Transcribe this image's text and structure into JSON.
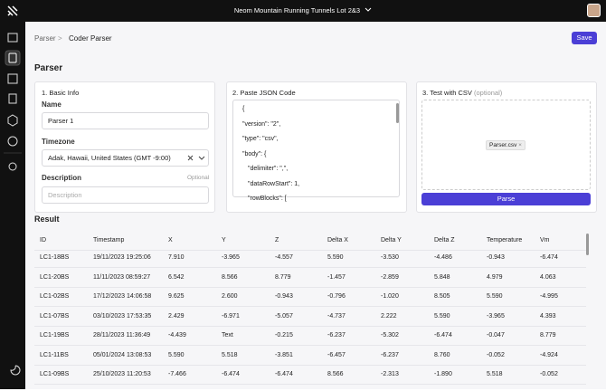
{
  "topbar": {
    "title": "Neom Mountain Running Tunnels Lot 2&3"
  },
  "breadcrumb": {
    "parent": "Parser",
    "current": "Coder Parser"
  },
  "save_button": "Save",
  "heading": "Parser",
  "card1": {
    "title": "1. Basic Info",
    "name_label": "Name",
    "name_value": "Parser 1",
    "timezone_label": "Timezone",
    "timezone_value": "Adak, Hawaii, United States (GMT -9:00)",
    "description_label": "Description",
    "description_note": "Optional",
    "description_placeholder": "Description"
  },
  "card2": {
    "title": "2. Paste JSON Code",
    "code": [
      "{",
      "\"version\": \"2\",",
      "\"type\": \"csv\",",
      "\"body\": {",
      "\"delimiter\": \",\",",
      "\"dataRowStart\": 1,",
      "\"rowBlocks\": ["
    ]
  },
  "card3": {
    "title": "3. Test with CSV",
    "note": "(optional)",
    "file": "Parser.csv",
    "button": "Parse"
  },
  "result": {
    "title": "Result",
    "table": {
      "columns": [
        "ID",
        "Timestamp",
        "X",
        "Y",
        "Z",
        "Delta X",
        "Delta Y",
        "Delta Z",
        "Temperature",
        "Vm"
      ],
      "rows": [
        [
          "LC1-18BS",
          "19/11/2023 19:25:06",
          "7.910",
          "-3.965",
          "-4.557",
          "5.590",
          "-3.530",
          "-4.486",
          "-0.943",
          "-6.474"
        ],
        [
          "LC1-20BS",
          "11/11/2023 08:59:27",
          "6.542",
          "8.566",
          "8.779",
          "-1.457",
          "-2.859",
          "5.848",
          "4.979",
          "4.063"
        ],
        [
          "LC1-02BS",
          "17/12/2023 14:06:58",
          "9.625",
          "2.600",
          "-0.943",
          "-0.796",
          "-1.020",
          "8.505",
          "5.590",
          "-4.995"
        ],
        [
          "LC1-07BS",
          "03/10/2023 17:53:35",
          "2.429",
          "-6.971",
          "-5.057",
          "-4.737",
          "2.222",
          "5.590",
          "-3.965",
          "4.393"
        ],
        [
          "LC1-19BS",
          "28/11/2023 11:36:49",
          "-4.439",
          "Text",
          "-0.215",
          "-6.237",
          "-5.302",
          "-6.474",
          "-0.047",
          "8.779"
        ],
        [
          "LC1-11BS",
          "05/01/2024 13:08:53",
          "5.590",
          "5.518",
          "-3.851",
          "-6.457",
          "-6.237",
          "8.760",
          "-0.052",
          "-4.924"
        ],
        [
          "LC1-09BS",
          "25/10/2023 11:20:53",
          "-7.466",
          "-6.474",
          "-6.474",
          "8.566",
          "-2.313",
          "-1.890",
          "5.518",
          "-0.052"
        ]
      ]
    }
  }
}
